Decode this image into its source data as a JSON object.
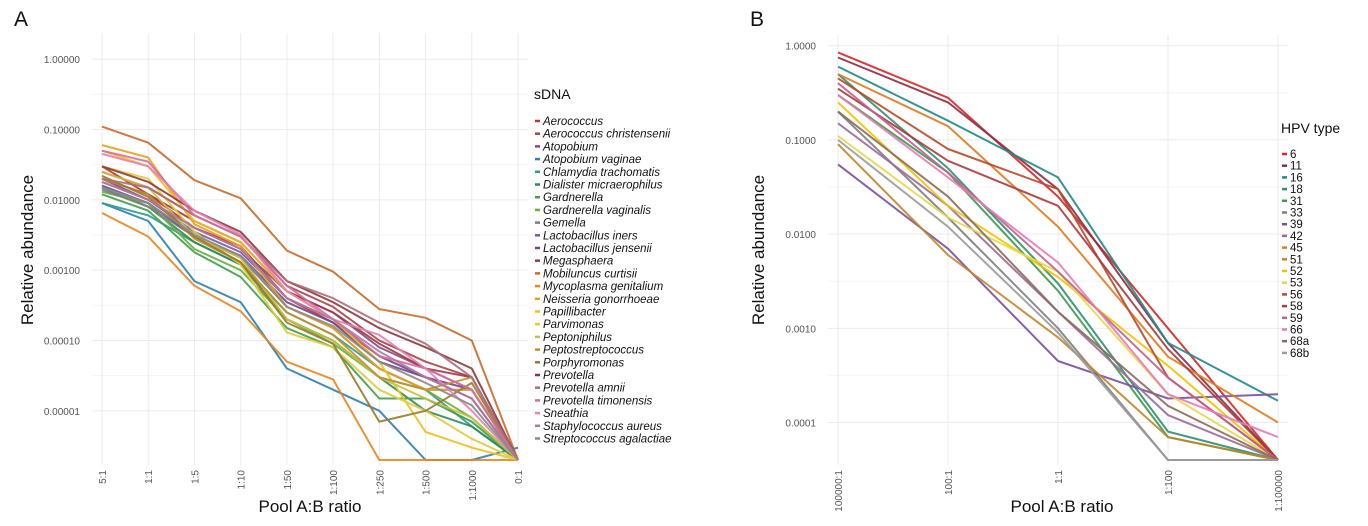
{
  "panels": {
    "a": "A",
    "b": "B"
  },
  "chart_data": [
    {
      "type": "line",
      "panel": "A",
      "xlabel": "Pool A:B ratio",
      "ylabel": "Relative abundance",
      "yscale": "log",
      "ylim": [
        2e-06,
        2
      ],
      "categories": [
        "5:1",
        "1:1",
        "1:5",
        "1:10",
        "1:50",
        "1:100",
        "1:250",
        "1:500",
        "1:1000",
        "0:1"
      ],
      "ytick_labels": [
        "1.00000",
        "0.10000",
        "0.01000",
        "0.00100",
        "0.00010",
        "0.00001"
      ],
      "yticks": [
        1,
        0.1,
        0.01,
        0.001,
        0.0001,
        1e-05
      ],
      "legend_title": "sDNA",
      "legend_position": "right",
      "grid": true,
      "series": [
        {
          "name": "Aerococcus",
          "color": "#c8312f",
          "values": [
            0.03,
            0.012,
            0.004,
            0.0022,
            0.0004,
            0.00018,
            6e-05,
            3e-05,
            2e-05,
            2e-06
          ]
        },
        {
          "name": "Aerococcus christensenii",
          "color": "#a84545",
          "values": [
            0.025,
            0.015,
            0.006,
            0.003,
            0.0006,
            0.0003,
            0.0001,
            5e-05,
            3e-05,
            2e-06
          ]
        },
        {
          "name": "Atopobium",
          "color": "#8a4a78",
          "values": [
            0.02,
            0.01,
            0.004,
            0.002,
            0.0005,
            0.00025,
            8e-05,
            4e-05,
            2e-05,
            2e-06
          ]
        },
        {
          "name": "Atopobium vaginae",
          "color": "#2f7fb0",
          "values": [
            0.009,
            0.005,
            0.0007,
            0.00035,
            4e-05,
            2e-05,
            1e-05,
            2e-06,
            2e-06,
            3e-06
          ]
        },
        {
          "name": "Chlamydia trachomatis",
          "color": "#2f9a92",
          "values": [
            0.009,
            0.006,
            0.0025,
            0.0012,
            0.00025,
            0.00012,
            4e-05,
            2e-05,
            6e-06,
            2e-06
          ]
        },
        {
          "name": "Dialister micraerophilus",
          "color": "#2f8a5a",
          "values": [
            0.015,
            0.008,
            0.0025,
            0.0012,
            0.0002,
            0.0001,
            3e-05,
            1e-05,
            6e-06,
            2e-06
          ]
        },
        {
          "name": "Gardnerella",
          "color": "#3fa04a",
          "values": [
            0.012,
            0.007,
            0.0018,
            0.0008,
            0.00015,
            8e-05,
            1.5e-05,
            1.5e-05,
            7e-06,
            2e-06
          ]
        },
        {
          "name": "Gardnerella vaginalis",
          "color": "#6cae3a",
          "values": [
            0.013,
            0.009,
            0.002,
            0.001,
            0.0002,
            9e-05,
            3e-05,
            2e-05,
            8e-06,
            2e-06
          ]
        },
        {
          "name": "Gemella",
          "color": "#7d7d7d",
          "values": [
            0.014,
            0.008,
            0.003,
            0.0015,
            0.0003,
            0.00015,
            4e-05,
            2e-05,
            2e-05,
            2e-06
          ]
        },
        {
          "name": "Lactobacillus iners",
          "color": "#7a5aa8",
          "values": [
            0.018,
            0.01,
            0.0035,
            0.0018,
            0.0004,
            0.0002,
            6e-05,
            3e-05,
            2e-05,
            2e-06
          ]
        },
        {
          "name": "Lactobacillus jensenii",
          "color": "#6a4a88",
          "values": [
            0.016,
            0.009,
            0.003,
            0.0016,
            0.00035,
            0.00018,
            5e-05,
            3e-05,
            1.5e-05,
            2e-06
          ]
        },
        {
          "name": "Megasphaera",
          "color": "#9c3a4a",
          "values": [
            0.02,
            0.012,
            0.005,
            0.0025,
            0.0005,
            0.00025,
            9e-05,
            4e-05,
            3e-05,
            2e-06
          ]
        },
        {
          "name": "Mobiluncus curtisii",
          "color": "#c86a2a",
          "values": [
            0.11,
            0.065,
            0.019,
            0.0105,
            0.0019,
            0.00095,
            0.00028,
            0.00021,
            0.0001,
            2e-06
          ]
        },
        {
          "name": "Mycoplasma genitalium",
          "color": "#e8861f",
          "values": [
            0.0065,
            0.003,
            0.0006,
            0.00026,
            5e-05,
            2.8e-05,
            2e-06,
            2e-06,
            2e-06,
            2e-06
          ]
        },
        {
          "name": "Neisseria gonorrhoeae",
          "color": "#e8a21f",
          "values": [
            0.06,
            0.04,
            0.0045,
            0.0022,
            0.0003,
            0.00015,
            4e-05,
            2e-05,
            2e-05,
            2e-06
          ]
        },
        {
          "name": "Papillibacter",
          "color": "#f0c020",
          "values": [
            0.05,
            0.03,
            0.005,
            0.0025,
            0.0005,
            0.0002,
            5e-05,
            5e-06,
            3e-06,
            2e-06
          ]
        },
        {
          "name": "Parvimonas",
          "color": "#e0cc3a",
          "values": [
            0.03,
            0.02,
            0.0035,
            0.0012,
            0.00013,
            8e-05,
            2e-05,
            1e-05,
            4e-06,
            2e-06
          ]
        },
        {
          "name": "Peptoniphilus",
          "color": "#c8c040",
          "values": [
            0.025,
            0.015,
            0.003,
            0.0015,
            0.0002,
            0.0001,
            3e-05,
            1.5e-05,
            8e-06,
            2e-06
          ]
        },
        {
          "name": "Peptostreptococcus",
          "color": "#c09030",
          "values": [
            0.02,
            0.012,
            0.0028,
            0.0013,
            0.00025,
            0.00012,
            3e-05,
            2e-05,
            3e-05,
            2e-06
          ]
        },
        {
          "name": "Porphyromonas",
          "color": "#9a7a2a",
          "values": [
            0.022,
            0.011,
            0.003,
            0.0013,
            0.00018,
            9e-05,
            7e-06,
            1e-05,
            2.5e-05,
            2e-06
          ]
        },
        {
          "name": "Prevotella",
          "color": "#8a3a3a",
          "values": [
            0.03,
            0.018,
            0.007,
            0.0035,
            0.0007,
            0.00035,
            0.00015,
            8e-05,
            4e-05,
            2e-06
          ]
        },
        {
          "name": "Prevotella amnii",
          "color": "#b06a80",
          "values": [
            0.02,
            0.015,
            0.006,
            0.003,
            0.0007,
            0.0004,
            0.00018,
            9e-05,
            3e-05,
            2e-06
          ]
        },
        {
          "name": "Prevotella timonensis",
          "color": "#d070a0",
          "values": [
            0.05,
            0.035,
            0.006,
            0.003,
            0.0006,
            0.0002,
            6e-05,
            4e-05,
            2e-05,
            2e-06
          ]
        },
        {
          "name": "Sneathia",
          "color": "#e880b0",
          "values": [
            0.045,
            0.03,
            0.007,
            0.0032,
            0.0005,
            0.0002,
            0.00012,
            4e-05,
            1e-05,
            2e-06
          ]
        },
        {
          "name": "Staphylococcus aureus",
          "color": "#b07aa0",
          "values": [
            0.018,
            0.01,
            0.004,
            0.002,
            0.0004,
            0.0002,
            7e-05,
            3e-05,
            1.5e-05,
            2e-06
          ]
        },
        {
          "name": "Streptococcus agalactiae",
          "color": "#8a8a8a",
          "values": [
            0.015,
            0.009,
            0.0032,
            0.0016,
            0.0003,
            0.00016,
            5e-05,
            2.5e-05,
            1.2e-05,
            2e-06
          ]
        }
      ]
    },
    {
      "type": "line",
      "panel": "B",
      "xlabel": "Pool A:B ratio",
      "ylabel": "Relative abundance",
      "yscale": "log",
      "ylim": [
        4e-05,
        1.15
      ],
      "categories": [
        "100000:1",
        "100:1",
        "1:1",
        "1:100",
        "1:100000"
      ],
      "ytick_labels": [
        "1.0000",
        "0.1000",
        "0.0100",
        "0.0010",
        "0.0001"
      ],
      "yticks": [
        1,
        0.1,
        0.01,
        0.001,
        0.0001
      ],
      "legend_title": "HPV type",
      "legend_position": "right",
      "grid": true,
      "series": [
        {
          "name": "6",
          "color": "#d62728",
          "values": [
            0.85,
            0.28,
            0.025,
            0.001,
            4e-05
          ]
        },
        {
          "name": "11",
          "color": "#8c2d3f",
          "values": [
            0.75,
            0.25,
            0.03,
            0.0007,
            4e-05
          ]
        },
        {
          "name": "16",
          "color": "#1f8a8a",
          "values": [
            0.6,
            0.16,
            0.04,
            0.0007,
            0.00017
          ]
        },
        {
          "name": "18",
          "color": "#2f8f6f",
          "values": [
            0.5,
            0.05,
            0.003,
            8e-05,
            4e-05
          ]
        },
        {
          "name": "31",
          "color": "#3a9a4a",
          "values": [
            0.3,
            0.045,
            0.0025,
            7e-05,
            4e-05
          ]
        },
        {
          "name": "33",
          "color": "#7f7f7f",
          "values": [
            0.2,
            0.015,
            0.001,
            4e-05,
            4e-05
          ]
        },
        {
          "name": "39",
          "color": "#7b4f9e",
          "values": [
            0.055,
            0.007,
            0.00045,
            0.00018,
            0.0002
          ]
        },
        {
          "name": "42",
          "color": "#9a6a9a",
          "values": [
            0.15,
            0.02,
            0.0015,
            0.00012,
            4e-05
          ]
        },
        {
          "name": "45",
          "color": "#e07b1f",
          "values": [
            0.5,
            0.14,
            0.012,
            0.0005,
            0.0001
          ]
        },
        {
          "name": "51",
          "color": "#c0862a",
          "values": [
            0.09,
            0.006,
            0.0008,
            7e-05,
            4e-05
          ]
        },
        {
          "name": "52",
          "color": "#f2c300",
          "values": [
            0.25,
            0.02,
            0.0035,
            0.0004,
            4e-05
          ]
        },
        {
          "name": "53",
          "color": "#e6d84a",
          "values": [
            0.11,
            0.015,
            0.004,
            0.0002,
            4e-05
          ]
        },
        {
          "name": "56",
          "color": "#b84a2a",
          "values": [
            0.45,
            0.08,
            0.03,
            0.0003,
            4e-05
          ]
        },
        {
          "name": "58",
          "color": "#a83a3a",
          "values": [
            0.35,
            0.06,
            0.02,
            0.0006,
            4e-05
          ]
        },
        {
          "name": "59",
          "color": "#c06090",
          "values": [
            0.4,
            0.045,
            0.004,
            0.0003,
            4e-05
          ]
        },
        {
          "name": "66",
          "color": "#e87ab5",
          "values": [
            0.3,
            0.04,
            0.005,
            0.0002,
            7e-05
          ]
        },
        {
          "name": "68a",
          "color": "#8a6a5a",
          "values": [
            0.2,
            0.025,
            0.0015,
            0.00015,
            4e-05
          ]
        },
        {
          "name": "68b",
          "color": "#9b9b9b",
          "values": [
            0.1,
            0.012,
            0.0009,
            4e-05,
            4e-05
          ]
        }
      ]
    }
  ]
}
